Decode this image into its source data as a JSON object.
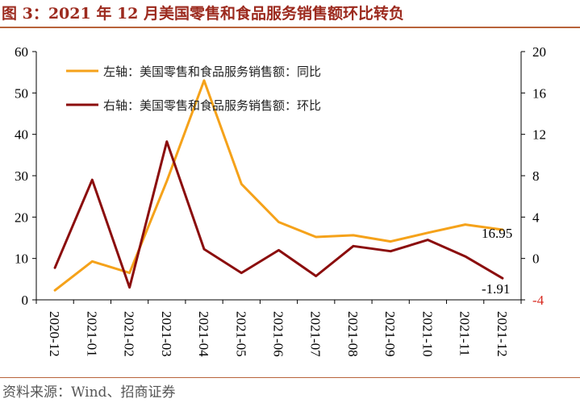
{
  "figure": {
    "title": "图 3：2021 年 12 月美国零售和食品服务销售额环比转负",
    "source": "资料来源：Wind、招商证券"
  },
  "chart_data": {
    "type": "line",
    "x": [
      "2020-12",
      "2021-01",
      "2021-02",
      "2021-03",
      "2021-04",
      "2021-05",
      "2021-06",
      "2021-07",
      "2021-08",
      "2021-09",
      "2021-10",
      "2021-11",
      "2021-12"
    ],
    "series": [
      {
        "name": "左轴：美国零售和食品服务销售额：同比",
        "axis": "left",
        "color": "#f5a21a",
        "values": [
          2.3,
          9.3,
          6.5,
          28.7,
          53.0,
          28.0,
          18.8,
          15.2,
          15.6,
          14.1,
          16.2,
          18.2,
          16.95
        ]
      },
      {
        "name": "右轴：美国零售和食品服务销售额：环比",
        "axis": "right",
        "color": "#8b0d0d",
        "values": [
          -0.9,
          7.6,
          -2.8,
          11.3,
          0.9,
          -1.4,
          0.8,
          -1.7,
          1.2,
          0.7,
          1.8,
          0.2,
          -1.91
        ]
      }
    ],
    "y_left": {
      "range": [
        0,
        60
      ],
      "ticks": [
        "0",
        "10",
        "20",
        "30",
        "40",
        "50",
        "60"
      ]
    },
    "y_right": {
      "range": [
        -4,
        20
      ],
      "ticks": [
        "-4",
        "0",
        "4",
        "8",
        "12",
        "16",
        "20"
      ]
    },
    "data_labels": [
      "16.95",
      "-1.91"
    ],
    "legend_position": "top-left",
    "grid": false
  }
}
